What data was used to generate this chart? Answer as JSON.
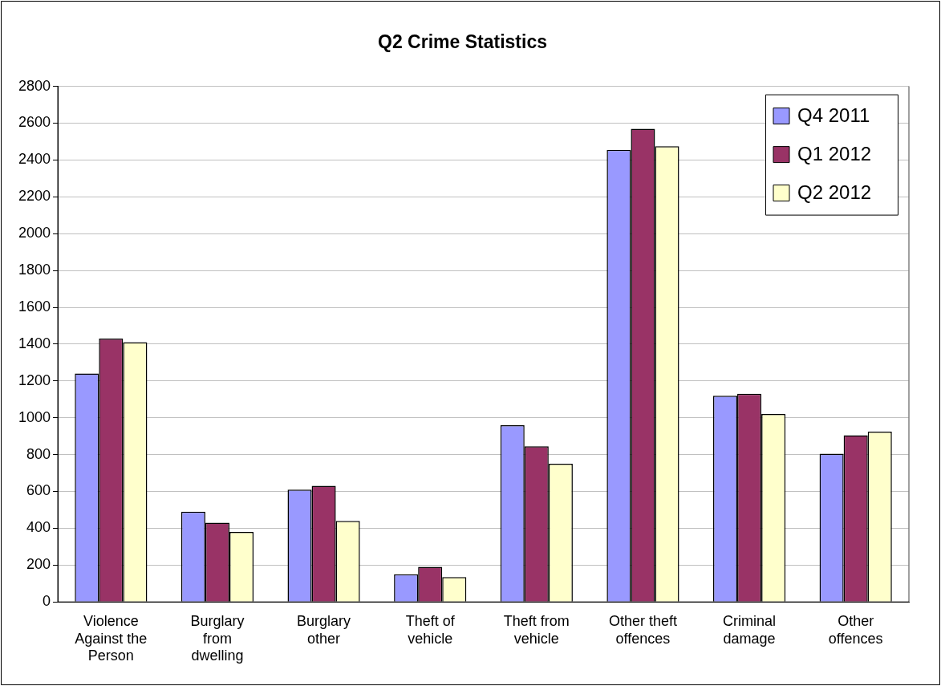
{
  "chart_data": {
    "type": "bar",
    "title": "Q2 Crime Statistics",
    "categories": [
      "Violence Against the Person",
      "Burglary from dwelling",
      "Burglary other",
      "Theft of vehicle",
      "Theft from vehicle",
      "Other theft offences",
      "Criminal damage",
      "Other offences"
    ],
    "series": [
      {
        "name": "Q4 2011",
        "color": "#9999ff",
        "values": [
          1240,
          490,
          610,
          150,
          960,
          2455,
          1120,
          805
        ]
      },
      {
        "name": "Q1 2012",
        "color": "#993366",
        "values": [
          1430,
          430,
          630,
          190,
          845,
          2570,
          1130,
          905
        ]
      },
      {
        "name": "Q2 2012",
        "color": "#ffffcc",
        "values": [
          1410,
          380,
          440,
          135,
          750,
          2475,
          1020,
          925
        ]
      }
    ],
    "ylim": [
      0,
      2800
    ],
    "yticks": [
      0,
      200,
      400,
      600,
      800,
      1000,
      1200,
      1400,
      1600,
      1800,
      2000,
      2200,
      2400,
      2600,
      2800
    ],
    "grid": "y",
    "legend": "top right"
  }
}
